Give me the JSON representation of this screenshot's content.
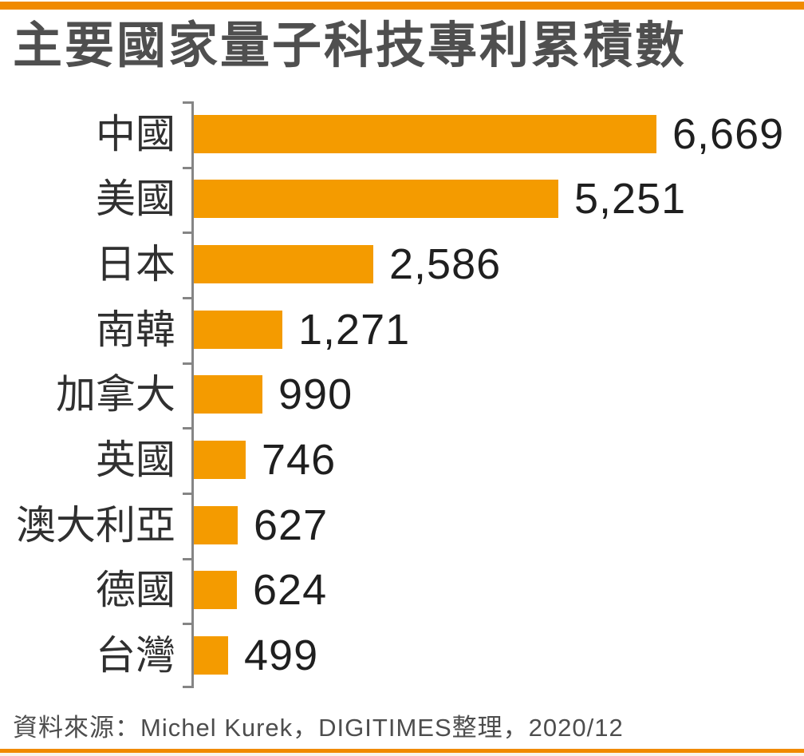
{
  "page": {
    "title": "主要國家量子科技專利累積數",
    "source": "資料來源：Michel Kurek，DIGITIMES整理，2020/12",
    "accent_strip_color": "#F08A00",
    "axis_color": "#858585",
    "background_color": "#FFFFFF"
  },
  "chart_data": {
    "type": "bar",
    "orientation": "horizontal",
    "title": "主要國家量子科技專利累積數",
    "categories": [
      "中國",
      "美國",
      "日本",
      "南韓",
      "加拿大",
      "英國",
      "澳大利亞",
      "德國",
      "台灣"
    ],
    "values": [
      6669,
      5251,
      2586,
      1271,
      990,
      746,
      627,
      624,
      499
    ],
    "value_labels": [
      "6,669",
      "5,251",
      "2,586",
      "1,271",
      "990",
      "746",
      "627",
      "624",
      "499"
    ],
    "bar_color": "#F49B00",
    "xlim": [
      0,
      6900
    ],
    "xlabel": "",
    "ylabel": "",
    "grid": false,
    "legend": "none",
    "value_label_position": "right-of-bar",
    "source": "資料來源：Michel Kurek，DIGITIMES整理，2020/12"
  }
}
